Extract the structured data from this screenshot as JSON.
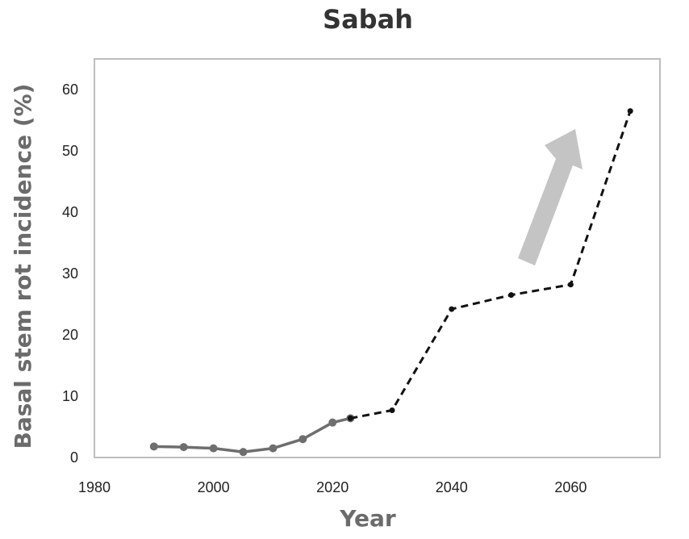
{
  "chart_data": {
    "type": "line",
    "title": "Sabah",
    "xlabel": "Year",
    "ylabel": "Basal stem rot incidence (%)",
    "xlim": [
      1980,
      2075
    ],
    "ylim": [
      0,
      65
    ],
    "xticks": [
      1980,
      2000,
      2020,
      2040,
      2060
    ],
    "yticks": [
      0,
      10,
      20,
      30,
      40,
      50,
      60
    ],
    "grid": false,
    "series": [
      {
        "style": "solid",
        "color": "#6e6e6e",
        "x": [
          1990,
          1995,
          2000,
          2005,
          2010,
          2015,
          2020,
          2023
        ],
        "y": [
          1.8,
          1.7,
          1.5,
          0.9,
          1.5,
          3.0,
          5.7,
          6.4
        ]
      },
      {
        "style": "dashed",
        "color": "#111111",
        "x": [
          2023,
          2030,
          2040,
          2050,
          2060,
          2070
        ],
        "y": [
          6.4,
          7.7,
          24.2,
          26.5,
          28.2,
          56.5
        ]
      }
    ],
    "annotations": [
      {
        "type": "arrow",
        "direction": "up-right",
        "color": "#c4c4c4"
      }
    ]
  }
}
